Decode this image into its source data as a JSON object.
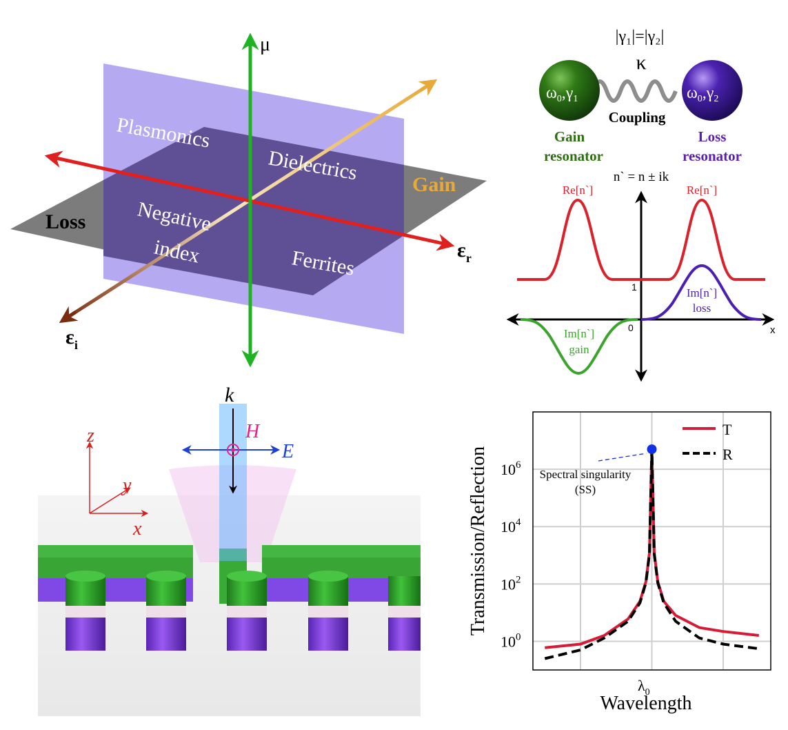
{
  "colors": {
    "axis_red": "#e0201e",
    "axis_green": "#1fb323",
    "axis_gain": "#e7a93a",
    "axis_loss_brown": "#7a2c10",
    "vertical_plane": "#a89bee",
    "horizontal_plane": "#6a5a9c",
    "gray_plane": "#7c7c7c",
    "gain_green": "#2f6e12",
    "loss_purple": "#5a1fb0",
    "re_curve": "#d9232c",
    "im_loss": "#4b1fb0",
    "im_gain": "#3aa42c",
    "t_curve": "#d41c38",
    "r_curve": "#000000",
    "ss_dot": "#1030e8",
    "k_beam": "#6ab8ff",
    "h_field": "#e8208a",
    "e_field": "#1e3fd8",
    "cyl_green": "#2fa52a",
    "cyl_purple": "#7a3ee0"
  },
  "panel_a": {
    "mu_label": "μ",
    "eps_r_label": "ε",
    "eps_r_sub": "r",
    "eps_i_label": "ε",
    "eps_i_sub": "i",
    "regions": {
      "plasmonics": "Plasmonics",
      "dielectrics": "Dielectrics",
      "negative": "Negative",
      "index": "index",
      "ferrites": "Ferrites"
    },
    "loss": "Loss",
    "gain": "Gain"
  },
  "panel_b": {
    "gamma_eq": "|γ₁|=|γ₂|",
    "kappa": "κ",
    "coupling": "Coupling",
    "left_omega": "ω",
    "left_sub0": "0",
    "left_gamma": ",γ",
    "left_sub1": "1",
    "right_omega": "ω",
    "right_sub0": "0",
    "right_gamma": ",γ",
    "right_sub2": "2",
    "gain_line1": "Gain",
    "gain_line2": "resonator",
    "loss_line1": "Loss",
    "loss_line2": "resonator",
    "n_eq": "n` = n ± ik",
    "re_left": "Re[n`]",
    "re_right": "Re[n`]",
    "im_loss_1": "Im[n`]",
    "im_loss_2": "loss",
    "im_gain_1": "Im[n`]",
    "im_gain_2": "gain",
    "tick_1": "1",
    "tick_0": "0",
    "x_label": "x"
  },
  "panel_c": {
    "k_label": "k",
    "h_label": "H",
    "e_label": "E",
    "z_label": "z",
    "y_label": "y",
    "x_label": "x"
  },
  "chart_data": {
    "type": "line",
    "ylabel": "Transmission/Reflection",
    "xlabel": "Wavelength",
    "x_tick": "λ",
    "x_tick_sub": "0",
    "y_scale": "log",
    "ylim": [
      0.1,
      100000000
    ],
    "y_ticks": [
      {
        "value": 1,
        "base": "10",
        "exp": "0"
      },
      {
        "value": 100,
        "base": "10",
        "exp": "2"
      },
      {
        "value": 10000,
        "base": "10",
        "exp": "4"
      },
      {
        "value": 1000000,
        "base": "10",
        "exp": "6"
      }
    ],
    "x_range": [
      -1,
      1
    ],
    "peak": {
      "x": 0,
      "y": 5000000,
      "label_line1": "Spectral singularity",
      "label_line2": "(SS)"
    },
    "series": [
      {
        "name": "T",
        "style": "solid",
        "x": [
          -0.9,
          -0.6,
          -0.4,
          -0.2,
          -0.1,
          -0.05,
          -0.02,
          0,
          0.02,
          0.05,
          0.1,
          0.2,
          0.4,
          0.6,
          0.9
        ],
        "y": [
          0.6,
          0.8,
          1.6,
          6,
          25,
          120,
          1200,
          5000000,
          1200,
          120,
          25,
          8,
          3,
          2.2,
          1.6
        ]
      },
      {
        "name": "R",
        "style": "dashed",
        "x": [
          -0.9,
          -0.6,
          -0.4,
          -0.2,
          -0.1,
          -0.05,
          -0.02,
          0,
          0.02,
          0.05,
          0.1,
          0.2,
          0.4,
          0.6,
          0.9
        ],
        "y": [
          0.25,
          0.5,
          1.3,
          5,
          22,
          110,
          1100,
          5000000,
          1100,
          110,
          22,
          5,
          1.3,
          0.8,
          0.55
        ]
      }
    ],
    "legend": [
      "T",
      "R"
    ],
    "legend_position": "top-right"
  }
}
